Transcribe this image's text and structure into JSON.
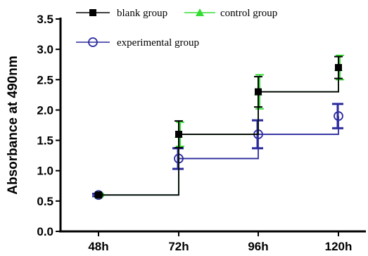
{
  "chart_data": {
    "type": "line",
    "categories": [
      "48h",
      "72h",
      "96h",
      "120h"
    ],
    "ylabel": "Absorbance at 490nm",
    "xlabel": "",
    "ylim": [
      0,
      3.5
    ],
    "yticks": [
      "0.0",
      "0.5",
      "1.0",
      "1.5",
      "2.0",
      "2.5",
      "3.0",
      "3.5"
    ],
    "grid": false,
    "legend_position": "top-left",
    "series": [
      {
        "name": "blank group",
        "color": "#000000",
        "marker": "square",
        "values": [
          0.6,
          1.6,
          2.3,
          2.7
        ],
        "errors": [
          0.02,
          0.22,
          0.25,
          0.18
        ]
      },
      {
        "name": "control group",
        "color": "#33dd33",
        "marker": "triangle",
        "values": [
          0.6,
          1.6,
          2.3,
          2.7
        ],
        "errors": [
          0.02,
          0.2,
          0.28,
          0.2
        ]
      },
      {
        "name": "experimental group",
        "color": "#2b2b9e",
        "marker": "circle-open",
        "values": [
          0.6,
          1.2,
          1.6,
          1.9
        ],
        "errors": [
          0.02,
          0.17,
          0.23,
          0.2
        ]
      }
    ]
  }
}
